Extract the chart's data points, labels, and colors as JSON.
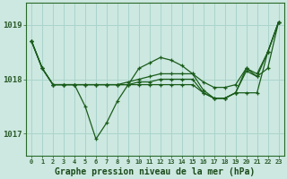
{
  "title": "Graphe pression niveau de la mer (hPa)",
  "background_color": "#cce8e0",
  "grid_color": "#aad4cc",
  "line_color": "#1a5c1a",
  "x_labels": [
    "0",
    "1",
    "2",
    "3",
    "4",
    "5",
    "6",
    "7",
    "8",
    "9",
    "10",
    "11",
    "12",
    "13",
    "14",
    "15",
    "16",
    "17",
    "18",
    "19",
    "20",
    "21",
    "22",
    "23"
  ],
  "xlim": [
    -0.5,
    23.5
  ],
  "ylim": [
    1016.6,
    1019.4
  ],
  "yticks": [
    1017,
    1018,
    1019
  ],
  "s1": [
    1018.7,
    1018.2,
    1017.9,
    1017.9,
    1017.9,
    1017.5,
    1016.9,
    1017.2,
    1017.6,
    1017.9,
    1018.2,
    1018.3,
    1018.4,
    1018.35,
    1018.25,
    1018.1,
    1017.8,
    1017.65,
    1017.65,
    1017.75,
    1018.15,
    1018.05,
    1018.5,
    1019.05
  ],
  "s2": [
    1018.7,
    1018.2,
    1017.9,
    1017.9,
    1017.9,
    1017.9,
    1017.9,
    1017.9,
    1017.9,
    1017.95,
    1018.0,
    1018.05,
    1018.1,
    1018.1,
    1018.1,
    1018.1,
    1017.95,
    1017.85,
    1017.85,
    1017.9,
    1018.2,
    1018.1,
    1018.5,
    1019.05
  ],
  "s3": [
    1018.7,
    1018.2,
    1017.9,
    1017.9,
    1017.9,
    1017.9,
    1017.9,
    1017.9,
    1017.9,
    1017.9,
    1017.9,
    1017.9,
    1017.9,
    1017.9,
    1017.9,
    1017.9,
    1017.75,
    1017.65,
    1017.65,
    1017.75,
    1017.75,
    1017.75,
    1018.5,
    1019.05
  ],
  "s4": [
    1018.7,
    1018.2,
    1017.9,
    1017.9,
    1017.9,
    1017.9,
    1017.9,
    1017.9,
    1017.9,
    1017.9,
    1017.95,
    1017.95,
    1018.0,
    1018.0,
    1018.0,
    1018.0,
    1017.75,
    1017.65,
    1017.65,
    1017.75,
    1018.2,
    1018.05,
    1018.2,
    1019.05
  ]
}
